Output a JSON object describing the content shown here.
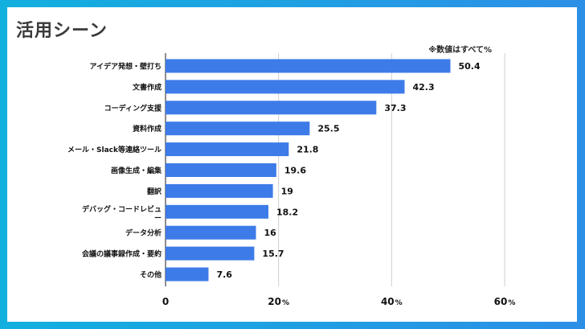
{
  "header": {
    "title": "活用シーン",
    "note": "※数値はすべて%"
  },
  "chart_data": {
    "type": "bar",
    "orientation": "horizontal",
    "title": "活用シーン",
    "categories": [
      "アイデア発想・壁打ち",
      "文書作成",
      "コーディング支援",
      "資料作成",
      "メール・Slack等連絡ツール",
      "画像生成・編集",
      "翻訳",
      "デバッグ・コードレビュー",
      "データ分析",
      "会議の議事録作成・要約",
      "その他"
    ],
    "values": [
      50.4,
      42.3,
      37.3,
      25.5,
      21.8,
      19.6,
      19,
      18.2,
      16,
      15.7,
      7.6
    ],
    "value_labels": [
      "50.4",
      "42.3",
      "37.3",
      "25.5",
      "21.8",
      "19.6",
      "19",
      "18.2",
      "16",
      "15.7",
      "7.6"
    ],
    "xlim": [
      0,
      60
    ],
    "xticks": [
      {
        "value": 0,
        "label": "0",
        "unit": ""
      },
      {
        "value": 20,
        "label": "20",
        "unit": "%"
      },
      {
        "value": 40,
        "label": "40",
        "unit": "%"
      },
      {
        "value": 60,
        "label": "60",
        "unit": "%"
      }
    ],
    "grid": true,
    "colors": {
      "bar": "#3d7be8",
      "grid": "#cfcfcf",
      "axis": "#444444"
    }
  }
}
